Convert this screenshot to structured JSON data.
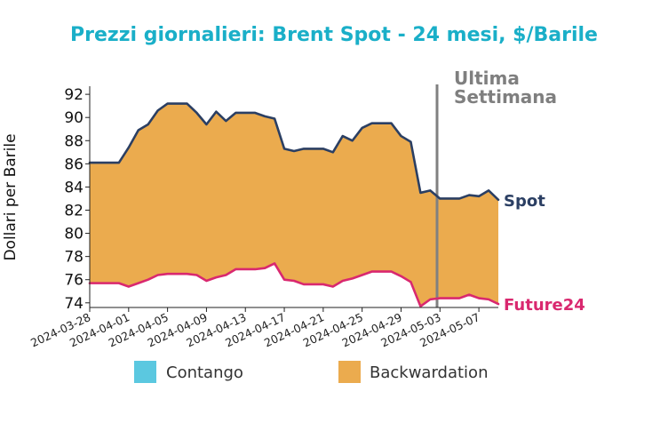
{
  "chart_data": {
    "type": "area",
    "title": "Prezzi giornalieri: Brent Spot - 24 mesi, $/Barile",
    "ylabel": "Dollari per Barile",
    "xlabel": "",
    "ylim": [
      73.6,
      92.7
    ],
    "y_ticks": [
      74,
      76,
      78,
      80,
      82,
      84,
      86,
      88,
      90,
      92
    ],
    "x_range": [
      "2024-03-28",
      "2024-05-09"
    ],
    "x_ticks": [
      "2024-03-28",
      "2024-04-01",
      "2024-04-05",
      "2024-04-09",
      "2024-04-13",
      "2024-04-17",
      "2024-04-21",
      "2024-04-25",
      "2024-04-29",
      "2024-05-03",
      "2024-05-07"
    ],
    "series": [
      {
        "name": "Spot",
        "color": "#2b3f63",
        "points": [
          [
            "2024-03-28",
            86.1
          ],
          [
            "2024-03-29",
            86.1
          ],
          [
            "2024-03-30",
            86.1
          ],
          [
            "2024-03-31",
            86.1
          ],
          [
            "2024-04-01",
            87.4
          ],
          [
            "2024-04-02",
            88.9
          ],
          [
            "2024-04-03",
            89.4
          ],
          [
            "2024-04-04",
            90.6
          ],
          [
            "2024-04-05",
            91.2
          ],
          [
            "2024-04-06",
            91.2
          ],
          [
            "2024-04-07",
            91.2
          ],
          [
            "2024-04-08",
            90.4
          ],
          [
            "2024-04-09",
            89.4
          ],
          [
            "2024-04-10",
            90.5
          ],
          [
            "2024-04-11",
            89.7
          ],
          [
            "2024-04-12",
            90.4
          ],
          [
            "2024-04-13",
            90.4
          ],
          [
            "2024-04-14",
            90.4
          ],
          [
            "2024-04-15",
            90.1
          ],
          [
            "2024-04-16",
            89.9
          ],
          [
            "2024-04-17",
            87.3
          ],
          [
            "2024-04-18",
            87.1
          ],
          [
            "2024-04-19",
            87.3
          ],
          [
            "2024-04-20",
            87.3
          ],
          [
            "2024-04-21",
            87.3
          ],
          [
            "2024-04-22",
            87.0
          ],
          [
            "2024-04-23",
            88.4
          ],
          [
            "2024-04-24",
            88.0
          ],
          [
            "2024-04-25",
            89.1
          ],
          [
            "2024-04-26",
            89.5
          ],
          [
            "2024-04-27",
            89.5
          ],
          [
            "2024-04-28",
            89.5
          ],
          [
            "2024-04-29",
            88.4
          ],
          [
            "2024-04-30",
            87.9
          ],
          [
            "2024-05-01",
            83.5
          ],
          [
            "2024-05-02",
            83.7
          ],
          [
            "2024-05-03",
            83.0
          ],
          [
            "2024-05-04",
            83.0
          ],
          [
            "2024-05-05",
            83.0
          ],
          [
            "2024-05-06",
            83.3
          ],
          [
            "2024-05-07",
            83.2
          ],
          [
            "2024-05-08",
            83.7
          ],
          [
            "2024-05-09",
            82.9
          ]
        ]
      },
      {
        "name": "Future24",
        "color": "#d9286f",
        "points": [
          [
            "2024-03-28",
            75.7
          ],
          [
            "2024-03-29",
            75.7
          ],
          [
            "2024-03-30",
            75.7
          ],
          [
            "2024-03-31",
            75.7
          ],
          [
            "2024-04-01",
            75.4
          ],
          [
            "2024-04-02",
            75.7
          ],
          [
            "2024-04-03",
            76.0
          ],
          [
            "2024-04-04",
            76.4
          ],
          [
            "2024-04-05",
            76.5
          ],
          [
            "2024-04-06",
            76.5
          ],
          [
            "2024-04-07",
            76.5
          ],
          [
            "2024-04-08",
            76.4
          ],
          [
            "2024-04-09",
            75.9
          ],
          [
            "2024-04-10",
            76.2
          ],
          [
            "2024-04-11",
            76.4
          ],
          [
            "2024-04-12",
            76.9
          ],
          [
            "2024-04-13",
            76.9
          ],
          [
            "2024-04-14",
            76.9
          ],
          [
            "2024-04-15",
            77.0
          ],
          [
            "2024-04-16",
            77.4
          ],
          [
            "2024-04-17",
            76.0
          ],
          [
            "2024-04-18",
            75.9
          ],
          [
            "2024-04-19",
            75.6
          ],
          [
            "2024-04-20",
            75.6
          ],
          [
            "2024-04-21",
            75.6
          ],
          [
            "2024-04-22",
            75.4
          ],
          [
            "2024-04-23",
            75.9
          ],
          [
            "2024-04-24",
            76.1
          ],
          [
            "2024-04-25",
            76.4
          ],
          [
            "2024-04-26",
            76.7
          ],
          [
            "2024-04-27",
            76.7
          ],
          [
            "2024-04-28",
            76.7
          ],
          [
            "2024-04-29",
            76.3
          ],
          [
            "2024-04-30",
            75.8
          ],
          [
            "2024-05-01",
            73.7
          ],
          [
            "2024-05-02",
            74.3
          ],
          [
            "2024-05-03",
            74.4
          ],
          [
            "2024-05-04",
            74.4
          ],
          [
            "2024-05-05",
            74.4
          ],
          [
            "2024-05-06",
            74.7
          ],
          [
            "2024-05-07",
            74.4
          ],
          [
            "2024-05-08",
            74.3
          ],
          [
            "2024-05-09",
            73.9
          ]
        ]
      }
    ],
    "vertical_marker": {
      "x": "2024-05-02.7",
      "label_line1": "Ultima",
      "label_line2": "Settimana",
      "color": "#808080"
    },
    "legend": {
      "placement": "bottom",
      "items": [
        {
          "label": "Contango",
          "color": "#5bc8e0"
        },
        {
          "label": "Backwardation",
          "color": "#ebab4e"
        }
      ]
    },
    "fill_colors": {
      "backwardation": "#ebab4e",
      "contango": "#5bc8e0"
    }
  }
}
